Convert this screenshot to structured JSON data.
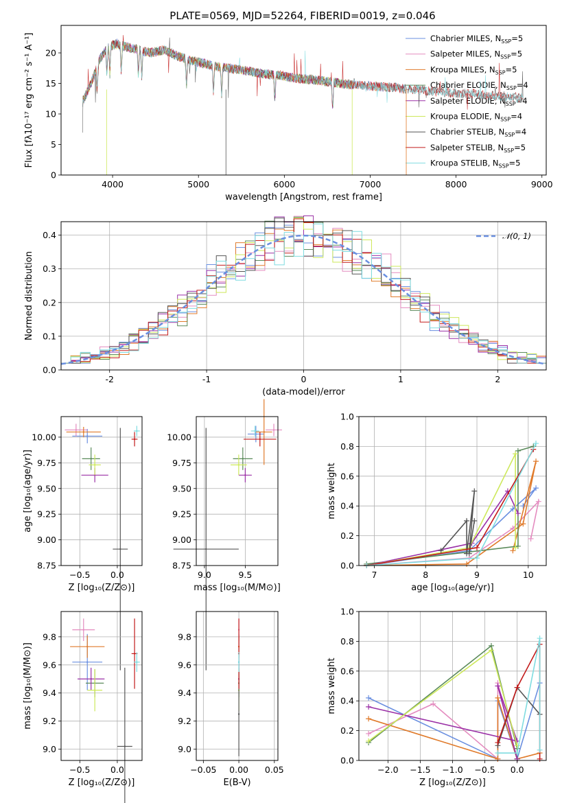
{
  "figure": {
    "title": "PLATE=0569, MJD=52264, FIBERID=0019, z=0.046"
  },
  "colors": {
    "Chabrier MILES": "#6a8fe0",
    "Salpeter MILES": "#e48bbf",
    "Kroupa MILES": "#e07a2a",
    "Chabrier ELODIE": "#5a8a5a",
    "Salpeter ELODIE": "#9a2fa6",
    "Kroupa ELODIE": "#cde85a",
    "Chabrier STELIB": "#555555",
    "Salpeter STELIB": "#c21a1a",
    "Kroupa STELIB": "#7fdce0"
  },
  "chart_data": [
    {
      "id": "spectrum",
      "type": "line",
      "title": "PLATE=0569, MJD=52264, FIBERID=0019, z=0.046",
      "xlabel": "wavelength [Angstrom, rest frame]",
      "ylabel": "Flux [fλ10⁻¹⁷ erg cm⁻² s⁻¹ A⁻¹]",
      "xlim": [
        3400,
        9050
      ],
      "ylim": [
        0,
        24.5
      ],
      "xticks": [
        4000,
        5000,
        6000,
        7000,
        8000,
        9000
      ],
      "yticks": [
        0,
        5,
        10,
        15,
        20
      ],
      "legend_position": "top-right",
      "x": [
        3650,
        3750,
        3850,
        3950,
        4050,
        4150,
        4300,
        4450,
        4600,
        4750,
        4900,
        5050,
        5200,
        5350,
        5500,
        5650,
        5800,
        5950,
        6100,
        6250,
        6400,
        6550,
        6700,
        6850,
        7000,
        7150,
        7300,
        7400,
        7600,
        7800,
        8000,
        8200,
        8400,
        8600,
        8700
      ],
      "continuum": [
        12,
        15,
        19,
        21,
        21.5,
        21,
        20.5,
        20,
        20.5,
        19.5,
        18.8,
        18.3,
        17.8,
        17.5,
        17.2,
        16.8,
        16.5,
        16.3,
        15.9,
        15.7,
        15.5,
        15.2,
        14.9,
        14.8,
        14.6,
        14.4,
        14.3,
        14.1,
        13.9,
        13.6,
        13.4,
        13.3,
        13.0,
        12.9,
        12.7
      ],
      "series": [
        {
          "name": "Chabrier MILES, N_SSP=5",
          "label": "Chabrier MILES, N",
          "sub": "SSP",
          "suffix": "=5",
          "x_end": 7420
        },
        {
          "name": "Salpeter MILES, N_SSP=5",
          "label": "Salpeter MILES, N",
          "sub": "SSP",
          "suffix": "=5",
          "x_end": 7420
        },
        {
          "name": "Kroupa MILES, N_SSP=5",
          "label": "Kroupa MILES, N",
          "sub": "SSP",
          "suffix": "=5",
          "x_end": 7420
        },
        {
          "name": "Chabrier ELODIE, N_SSP=4",
          "label": "Chabrier ELODIE, N",
          "sub": "SSP",
          "suffix": "=4",
          "x_end": 6790
        },
        {
          "name": "Salpeter ELODIE, N_SSP=4",
          "label": "Salpeter ELODIE, N",
          "sub": "SSP",
          "suffix": "=4",
          "x_end": 6790
        },
        {
          "name": "Kroupa ELODIE, N_SSP=4",
          "label": "Kroupa ELODIE, N",
          "sub": "SSP",
          "suffix": "=4",
          "x_end": 6790
        },
        {
          "name": "Chabrier STELIB, N_SSP=4",
          "label": "Chabrier STELIB, N",
          "sub": "SSP",
          "suffix": "=4",
          "x_end": 8780
        },
        {
          "name": "Salpeter STELIB, N_SSP=5",
          "label": "Salpeter STELIB, N",
          "sub": "SSP",
          "suffix": "=5",
          "x_end": 8780
        },
        {
          "name": "Kroupa STELIB, N_SSP=5",
          "label": "Kroupa STELIB, N",
          "sub": "SSP",
          "suffix": "=5",
          "x_end": 8780
        }
      ],
      "grid": false
    },
    {
      "id": "residuals",
      "type": "histogram",
      "xlabel": "(data-model)/error",
      "ylabel": "Normed distribution",
      "xlim": [
        -2.5,
        2.5
      ],
      "ylim": [
        0,
        0.44
      ],
      "xticks": [
        -2,
        -1,
        0,
        1,
        2
      ],
      "yticks": [
        0.0,
        0.1,
        0.2,
        0.3,
        0.4
      ],
      "grid": true,
      "bins": [
        -2.5,
        2.5,
        50
      ],
      "reference_curve": {
        "label": "𝒩(0, 1)",
        "mean": 0,
        "sigma": 1,
        "legend_position": "top-right"
      }
    },
    {
      "id": "age-vs-Z",
      "type": "errorbar",
      "xlabel": "Z [log₁₀(Z/Z⊙)]",
      "ylabel": "age  [log₁₀(age/yr)]",
      "xlim": [
        -0.75,
        0.33
      ],
      "ylim": [
        8.75,
        10.2
      ],
      "xticks": [
        -0.5,
        0.0
      ],
      "xtick_labels": [
        "−0.5",
        "0.0"
      ],
      "yticks": [
        8.75,
        9.0,
        9.25,
        9.5,
        9.75,
        10.0
      ],
      "ytick_labels": [
        "8.75",
        "9.00",
        "9.25",
        "9.50",
        "9.75",
        "10.00"
      ],
      "grid": true,
      "points": [
        {
          "model": "Chabrier MILES",
          "x": -0.4,
          "y": 10.01,
          "xerr": 0.2,
          "yerr": 0.07
        },
        {
          "model": "Salpeter MILES",
          "x": -0.55,
          "y": 10.07,
          "xerr": 0.15,
          "yerr": 0.06
        },
        {
          "model": "Kroupa MILES",
          "x": -0.45,
          "y": 10.05,
          "xerr": 0.23,
          "yerr": 0.05
        },
        {
          "model": "Chabrier ELODIE",
          "x": -0.35,
          "y": 9.79,
          "xerr": 0.12,
          "yerr": 0.11
        },
        {
          "model": "Salpeter ELODIE",
          "x": -0.3,
          "y": 9.63,
          "xerr": 0.18,
          "yerr": 0.07
        },
        {
          "model": "Kroupa ELODIE",
          "x": -0.3,
          "y": 9.73,
          "xerr": 0.08,
          "yerr": 0.1
        },
        {
          "model": "Chabrier STELIB",
          "x": 0.04,
          "y": 8.91,
          "xerr": 0.1,
          "yerr": 1.18
        },
        {
          "model": "Salpeter STELIB",
          "x": 0.23,
          "y": 9.98,
          "xerr": 0.04,
          "yerr": 0.07
        },
        {
          "model": "Kroupa STELIB",
          "x": 0.26,
          "y": 10.06,
          "xerr": 0.04,
          "yerr": 0.05
        }
      ]
    },
    {
      "id": "age-vs-mass",
      "type": "errorbar",
      "xlabel": "mass [log₁₀(M/M⊙)]",
      "xlim": [
        8.9,
        9.9
      ],
      "ylim": [
        8.75,
        10.2
      ],
      "xticks": [
        9.0,
        9.5
      ],
      "xtick_labels": [
        "9.0",
        "9.5"
      ],
      "yticks": [
        8.75,
        9.0,
        9.25,
        9.5,
        9.75,
        10.0
      ],
      "ytick_labels": [
        "8.75",
        "9.00",
        "9.25",
        "9.50",
        "9.75",
        "10.00"
      ],
      "grid": true,
      "points": [
        {
          "model": "Chabrier MILES",
          "x": 9.63,
          "y": 10.03,
          "xerr": 0.1,
          "yerr": 0.08
        },
        {
          "model": "Salpeter MILES",
          "x": 9.85,
          "y": 10.07,
          "xerr": 0.1,
          "yerr": 0.06
        },
        {
          "model": "Kroupa MILES",
          "x": 9.73,
          "y": 10.05,
          "xerr": 0.1,
          "yerr": 0.32
        },
        {
          "model": "Chabrier ELODIE",
          "x": 9.47,
          "y": 9.79,
          "xerr": 0.12,
          "yerr": 0.11
        },
        {
          "model": "Salpeter ELODIE",
          "x": 9.5,
          "y": 9.63,
          "xerr": 0.08,
          "yerr": 0.07
        },
        {
          "model": "Kroupa ELODIE",
          "x": 9.42,
          "y": 9.73,
          "xerr": 0.1,
          "yerr": 0.1
        },
        {
          "model": "Chabrier STELIB",
          "x": 9.02,
          "y": 8.91,
          "xerr": 0.4,
          "yerr": 1.18
        },
        {
          "model": "Salpeter STELIB",
          "x": 9.68,
          "y": 9.98,
          "xerr": 0.2,
          "yerr": 0.07
        },
        {
          "model": "Kroupa STELIB",
          "x": 9.62,
          "y": 10.06,
          "xerr": 0.05,
          "yerr": 0.05
        }
      ]
    },
    {
      "id": "mass-weight-vs-age",
      "type": "line",
      "xlabel": "age  [log₁₀(age/yr)]",
      "ylabel": "mass weight",
      "xlim": [
        6.7,
        10.35
      ],
      "ylim": [
        0,
        1.0
      ],
      "xticks": [
        7,
        8,
        9,
        10
      ],
      "yticks": [
        0.0,
        0.2,
        0.4,
        0.6,
        0.8,
        1.0
      ],
      "grid": true,
      "series": [
        {
          "name": "Chabrier MILES",
          "x": [
            6.85,
            8.85,
            9.7,
            10.15,
            9.9
          ],
          "y": [
            0.0,
            0.1,
            0.38,
            0.52,
            0.4
          ]
        },
        {
          "name": "Salpeter MILES",
          "x": [
            6.85,
            8.85,
            9.7,
            10.2,
            10.05
          ],
          "y": [
            0.0,
            0.05,
            0.25,
            0.43,
            0.18
          ]
        },
        {
          "name": "Kroupa MILES",
          "x": [
            6.85,
            8.8,
            9.9,
            10.15,
            9.7
          ],
          "y": [
            0.0,
            0.01,
            0.28,
            0.7,
            0.1
          ]
        },
        {
          "name": "Chabrier ELODIE",
          "x": [
            6.85,
            9.8,
            9.8,
            10.1
          ],
          "y": [
            0.01,
            0.13,
            0.77,
            0.8
          ]
        },
        {
          "name": "Salpeter ELODIE",
          "x": [
            6.85,
            8.9,
            9.6,
            9.8
          ],
          "y": [
            0.0,
            0.15,
            0.5,
            0.35
          ]
        },
        {
          "name": "Kroupa ELODIE",
          "x": [
            6.85,
            8.85,
            9.75,
            9.75
          ],
          "y": [
            0.0,
            0.12,
            0.75,
            0.12
          ]
        },
        {
          "name": "Chabrier STELIB",
          "x": [
            8.3,
            8.8,
            8.8,
            8.95,
            8.85,
            8.95
          ],
          "y": [
            0.1,
            0.3,
            0.08,
            0.5,
            0.08,
            0.3
          ]
        },
        {
          "name": "Salpeter STELIB",
          "x": [
            6.85,
            9.0,
            10.1
          ],
          "y": [
            0.0,
            0.12,
            0.78
          ]
        },
        {
          "name": "Kroupa STELIB",
          "x": [
            6.85,
            9.0,
            10.15
          ],
          "y": [
            0.0,
            0.05,
            0.82
          ]
        }
      ]
    },
    {
      "id": "mass-vs-Z",
      "type": "errorbar",
      "xlabel": "Z [log₁₀(Z/Z⊙)]",
      "ylabel": "mass [log₁₀(M/M⊙)]",
      "xlim": [
        -0.75,
        0.33
      ],
      "ylim": [
        8.92,
        9.98
      ],
      "xticks": [
        -0.5,
        0.0
      ],
      "xtick_labels": [
        "−0.5",
        "0.0"
      ],
      "yticks": [
        9.0,
        9.2,
        9.4,
        9.6,
        9.8
      ],
      "ytick_labels": [
        "9.0",
        "9.2",
        "9.4",
        "9.6",
        "9.8"
      ],
      "grid": true,
      "points": [
        {
          "model": "Chabrier MILES",
          "x": -0.4,
          "y": 9.62,
          "xerr": 0.2,
          "yerr": 0.2
        },
        {
          "model": "Salpeter MILES",
          "x": -0.45,
          "y": 9.85,
          "xerr": 0.15,
          "yerr": 0.08
        },
        {
          "model": "Kroupa MILES",
          "x": -0.4,
          "y": 9.73,
          "xerr": 0.23,
          "yerr": 0.08
        },
        {
          "model": "Chabrier ELODIE",
          "x": -0.3,
          "y": 9.47,
          "xerr": 0.12,
          "yerr": 0.1
        },
        {
          "model": "Salpeter ELODIE",
          "x": -0.35,
          "y": 9.5,
          "xerr": 0.18,
          "yerr": 0.08
        },
        {
          "model": "Kroupa ELODIE",
          "x": -0.3,
          "y": 9.42,
          "xerr": 0.1,
          "yerr": 0.15
        },
        {
          "model": "Chabrier STELIB",
          "x": 0.1,
          "y": 9.02,
          "xerr": 0.1,
          "yerr": 0.56
        },
        {
          "model": "Salpeter STELIB",
          "x": 0.23,
          "y": 9.68,
          "xerr": 0.04,
          "yerr": 0.25
        },
        {
          "model": "Kroupa STELIB",
          "x": 0.26,
          "y": 9.62,
          "xerr": 0.04,
          "yerr": 0.07
        }
      ]
    },
    {
      "id": "mass-vs-EBV",
      "type": "errorbar",
      "xlabel": "E(B-V)",
      "xlim": [
        -0.06,
        0.055
      ],
      "ylim": [
        8.92,
        9.98
      ],
      "xticks": [
        -0.05,
        0.0,
        0.05
      ],
      "xtick_labels": [
        "−0.05",
        "0.00",
        "0.05"
      ],
      "yticks": [
        9.0,
        9.2,
        9.4,
        9.6,
        9.8
      ],
      "ytick_labels": [
        "9.0",
        "9.2",
        "9.4",
        "9.6",
        "9.8"
      ],
      "grid": true,
      "points": [
        {
          "model": "Chabrier MILES",
          "x": 0,
          "y": 9.62,
          "xerr": 0,
          "yerr": 0.2
        },
        {
          "model": "Salpeter MILES",
          "x": 0,
          "y": 9.85,
          "xerr": 0,
          "yerr": 0.08
        },
        {
          "model": "Kroupa MILES",
          "x": 0,
          "y": 9.73,
          "xerr": 0,
          "yerr": 0.08
        },
        {
          "model": "Chabrier ELODIE",
          "x": 0,
          "y": 9.47,
          "xerr": 0,
          "yerr": 0.1
        },
        {
          "model": "Salpeter ELODIE",
          "x": 0,
          "y": 9.5,
          "xerr": 0,
          "yerr": 0.08
        },
        {
          "model": "Kroupa ELODIE",
          "x": 0,
          "y": 9.42,
          "xerr": 0,
          "yerr": 0.15
        },
        {
          "model": "Chabrier STELIB",
          "x": 0,
          "y": 9.25,
          "xerr": 0,
          "yerr": 0.3
        },
        {
          "model": "Salpeter STELIB",
          "x": 0,
          "y": 9.68,
          "xerr": 0,
          "yerr": 0.25
        },
        {
          "model": "Kroupa STELIB",
          "x": 0,
          "y": 9.62,
          "xerr": 0,
          "yerr": 0.07
        }
      ]
    },
    {
      "id": "mass-weight-vs-Z",
      "type": "line",
      "xlabel": "Z [log₁₀(Z/Z⊙)]",
      "ylabel": "mass weight",
      "xlim": [
        -2.45,
        0.45
      ],
      "ylim": [
        0,
        1.0
      ],
      "xticks": [
        -2.0,
        -1.5,
        -1.0,
        -0.5,
        0.0
      ],
      "xtick_labels": [
        "−2.0",
        "−1.5",
        "−1.0",
        "−0.5",
        "0.0"
      ],
      "yticks": [
        0.0,
        0.2,
        0.4,
        0.6,
        0.8,
        1.0
      ],
      "grid": true,
      "series": [
        {
          "name": "Chabrier MILES",
          "x": [
            -2.3,
            -0.3,
            -0.3,
            0.0,
            0.35
          ],
          "y": [
            0.42,
            0.01,
            0.4,
            0.01,
            0.52
          ]
        },
        {
          "name": "Salpeter MILES",
          "x": [
            -2.3,
            -1.3,
            -0.3,
            -0.3,
            0.0
          ],
          "y": [
            0.18,
            0.38,
            0.01,
            0.52,
            0.01
          ]
        },
        {
          "name": "Kroupa MILES",
          "x": [
            -2.3,
            -0.3,
            -0.3,
            0.0,
            0.35
          ],
          "y": [
            0.28,
            0.01,
            0.42,
            0.01,
            0.05
          ]
        },
        {
          "name": "Chabrier ELODIE",
          "x": [
            -2.3,
            -0.4,
            0.0,
            0.0
          ],
          "y": [
            0.12,
            0.77,
            0.08,
            0.01
          ]
        },
        {
          "name": "Salpeter ELODIE",
          "x": [
            -2.3,
            0.0,
            -0.3,
            0.0
          ],
          "y": [
            0.36,
            0.13,
            0.5,
            0.01
          ]
        },
        {
          "name": "Kroupa ELODIE",
          "x": [
            -2.3,
            -0.4,
            0.0
          ],
          "y": [
            0.13,
            0.74,
            0.1
          ]
        },
        {
          "name": "Chabrier STELIB",
          "x": [
            -0.3,
            0.0,
            0.35
          ],
          "y": [
            0.1,
            0.49,
            0.31
          ]
        },
        {
          "name": "Salpeter STELIB",
          "x": [
            -0.3,
            0.0,
            0.35,
            0.35
          ],
          "y": [
            0.12,
            0.49,
            0.78,
            0.01
          ]
        },
        {
          "name": "Kroupa STELIB",
          "x": [
            -0.3,
            0.0,
            0.35,
            0.35
          ],
          "y": [
            0.05,
            0.05,
            0.82,
            0.07
          ]
        }
      ]
    }
  ]
}
